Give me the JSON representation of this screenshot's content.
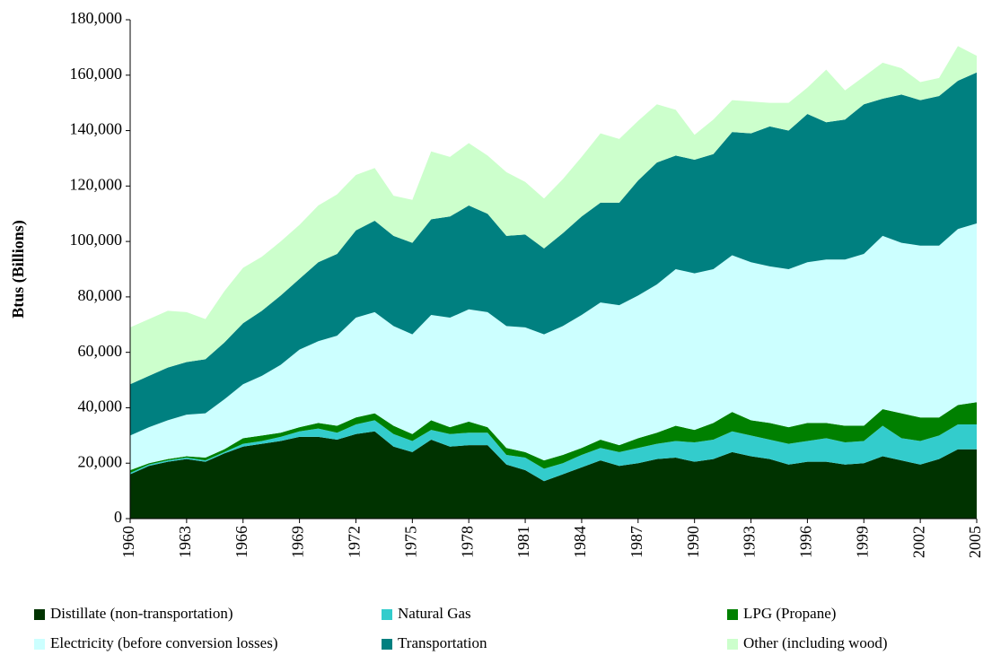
{
  "chart_data": {
    "type": "stacked-area",
    "y_label": "Btus (Billions)",
    "x": [
      1960,
      1961,
      1962,
      1963,
      1964,
      1965,
      1966,
      1967,
      1968,
      1969,
      1970,
      1971,
      1972,
      1973,
      1974,
      1975,
      1976,
      1977,
      1978,
      1979,
      1980,
      1981,
      1982,
      1983,
      1984,
      1985,
      1986,
      1987,
      1988,
      1989,
      1990,
      1991,
      1992,
      1993,
      1994,
      1995,
      1996,
      1997,
      1998,
      1999,
      2000,
      2001,
      2002,
      2003,
      2004,
      2005
    ],
    "xlim": [
      1960,
      2005
    ],
    "xticks": [
      1960,
      1963,
      1966,
      1969,
      1972,
      1975,
      1978,
      1981,
      1984,
      1987,
      1990,
      1993,
      1996,
      1999,
      2002,
      2005
    ],
    "ylim": [
      0,
      180000
    ],
    "yticks": [
      0,
      {
        "value": 20000,
        "label": "20,000"
      },
      {
        "value": 40000,
        "label": "40,000"
      },
      {
        "value": 60000,
        "label": "60,000"
      },
      {
        "value": 80000,
        "label": "80,000"
      },
      {
        "value": 100000,
        "label": "100,000"
      },
      {
        "value": 120000,
        "label": "120,000"
      },
      {
        "value": 140000,
        "label": "140,000"
      },
      {
        "value": 160000,
        "label": "160,000"
      },
      {
        "value": 180000,
        "label": "180,000"
      }
    ],
    "series": [
      {
        "name": "Distillate (non-transportation)",
        "color": "#003300",
        "values": [
          16000,
          19000,
          20500,
          21500,
          20500,
          23500,
          26000,
          27000,
          28000,
          29500,
          29500,
          28500,
          30500,
          31500,
          26000,
          24000,
          28500,
          26000,
          26500,
          26500,
          19500,
          17500,
          13500,
          16000,
          18500,
          21000,
          19000,
          20000,
          21500,
          22000,
          20500,
          21500,
          24000,
          22500,
          21500,
          19500,
          20500,
          20500,
          19500,
          20000,
          22500,
          21000,
          19500,
          21500,
          25000,
          25000
        ]
      },
      {
        "name": "Natural Gas",
        "color": "#33cccc",
        "values": [
          500,
          500,
          500,
          500,
          500,
          500,
          1000,
          1000,
          1500,
          2000,
          3000,
          2500,
          3500,
          4000,
          4500,
          4000,
          3500,
          4500,
          4500,
          4500,
          3500,
          4500,
          4500,
          4000,
          4500,
          4500,
          5000,
          5500,
          5500,
          6000,
          7000,
          7000,
          7500,
          7500,
          7000,
          7500,
          7500,
          8500,
          8000,
          8000,
          11000,
          8000,
          8500,
          8500,
          9000,
          9000
        ]
      },
      {
        "name": "LPG (Propane)",
        "color": "#008000",
        "values": [
          1000,
          500,
          500,
          500,
          1000,
          1000,
          2000,
          2000,
          1500,
          1500,
          2000,
          2500,
          2500,
          2500,
          3000,
          2500,
          3500,
          2500,
          4000,
          2000,
          2500,
          2000,
          3000,
          3000,
          2500,
          3000,
          2500,
          3500,
          4000,
          5500,
          4500,
          6000,
          7000,
          5500,
          6000,
          6000,
          6500,
          5500,
          6000,
          5500,
          6000,
          9000,
          8500,
          6500,
          7000,
          8000
        ]
      },
      {
        "name": "Electricity (before conversion losses)",
        "color": "#ccffff",
        "values": [
          12500,
          13000,
          14000,
          15000,
          16000,
          18000,
          19500,
          21500,
          24500,
          28000,
          29500,
          32500,
          36000,
          36500,
          36000,
          36000,
          38000,
          39500,
          40500,
          41500,
          44000,
          45000,
          45500,
          46500,
          48000,
          49500,
          50500,
          51500,
          53500,
          56500,
          56500,
          55500,
          56500,
          57000,
          56500,
          57000,
          58000,
          59000,
          60000,
          62000,
          62500,
          61500,
          62000,
          62000,
          63500,
          64500
        ]
      },
      {
        "name": "Transportation",
        "color": "#008080",
        "values": [
          18500,
          18500,
          19000,
          19000,
          19500,
          20500,
          22000,
          23500,
          25000,
          25500,
          28500,
          29500,
          31500,
          33000,
          32500,
          33000,
          34500,
          36500,
          37500,
          35500,
          32500,
          33500,
          31000,
          33500,
          35500,
          36000,
          37000,
          41500,
          44000,
          41000,
          41000,
          41500,
          44500,
          46500,
          50500,
          50000,
          53500,
          49500,
          50500,
          54000,
          49500,
          53500,
          52500,
          54000,
          53500,
          54500
        ]
      },
      {
        "name": "Other (including wood)",
        "color": "#ccffcc",
        "values": [
          20500,
          20500,
          20500,
          18000,
          14500,
          18500,
          20000,
          19500,
          19500,
          19500,
          20500,
          21500,
          20000,
          19000,
          14500,
          15500,
          24500,
          21500,
          22500,
          21000,
          23000,
          19000,
          18000,
          19500,
          21500,
          25000,
          23000,
          21500,
          21000,
          16500,
          9000,
          12500,
          11500,
          11500,
          8500,
          10000,
          9500,
          19000,
          10500,
          10000,
          13000,
          9500,
          6500,
          6500,
          12500,
          6000
        ]
      }
    ]
  }
}
